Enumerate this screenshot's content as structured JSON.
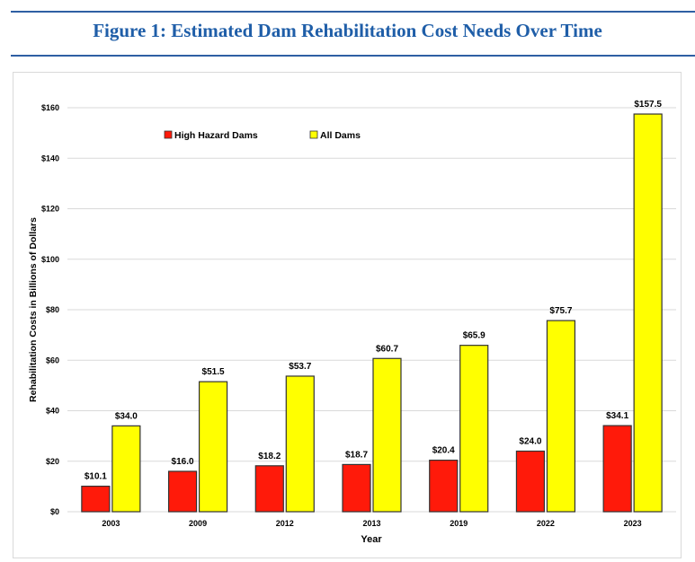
{
  "title": "Figure 1: Estimated Dam Rehabilitation Cost Needs Over Time",
  "chart_data": {
    "type": "bar",
    "categories": [
      "2003",
      "2009",
      "2012",
      "2013",
      "2019",
      "2022",
      "2023"
    ],
    "series": [
      {
        "name": "High Hazard Dams",
        "color": "#ff1a0a",
        "values": [
          10.1,
          16.0,
          18.2,
          18.7,
          20.4,
          24.0,
          34.1
        ],
        "labels": [
          "$10.1",
          "$16.0",
          "$18.2",
          "$18.7",
          "$20.4",
          "$24.0",
          "$34.1"
        ]
      },
      {
        "name": "All Dams",
        "color": "#ffff00",
        "values": [
          34.0,
          51.5,
          53.7,
          60.7,
          65.9,
          75.7,
          157.5
        ],
        "labels": [
          "$34.0",
          "$51.5",
          "$53.7",
          "$60.7",
          "$65.9",
          "$75.7",
          "$157.5"
        ]
      }
    ],
    "xlabel": "Year",
    "ylabel": "Rehabilitation Costs in Billions of Dollars",
    "ylim": [
      0,
      160
    ],
    "yticks": [
      0,
      20,
      40,
      60,
      80,
      100,
      120,
      140,
      160
    ],
    "ytick_labels": [
      "$0",
      "$20",
      "$40",
      "$60",
      "$80",
      "$100",
      "$120",
      "$140",
      "$160"
    ],
    "grid": true,
    "legend": "top-left"
  }
}
